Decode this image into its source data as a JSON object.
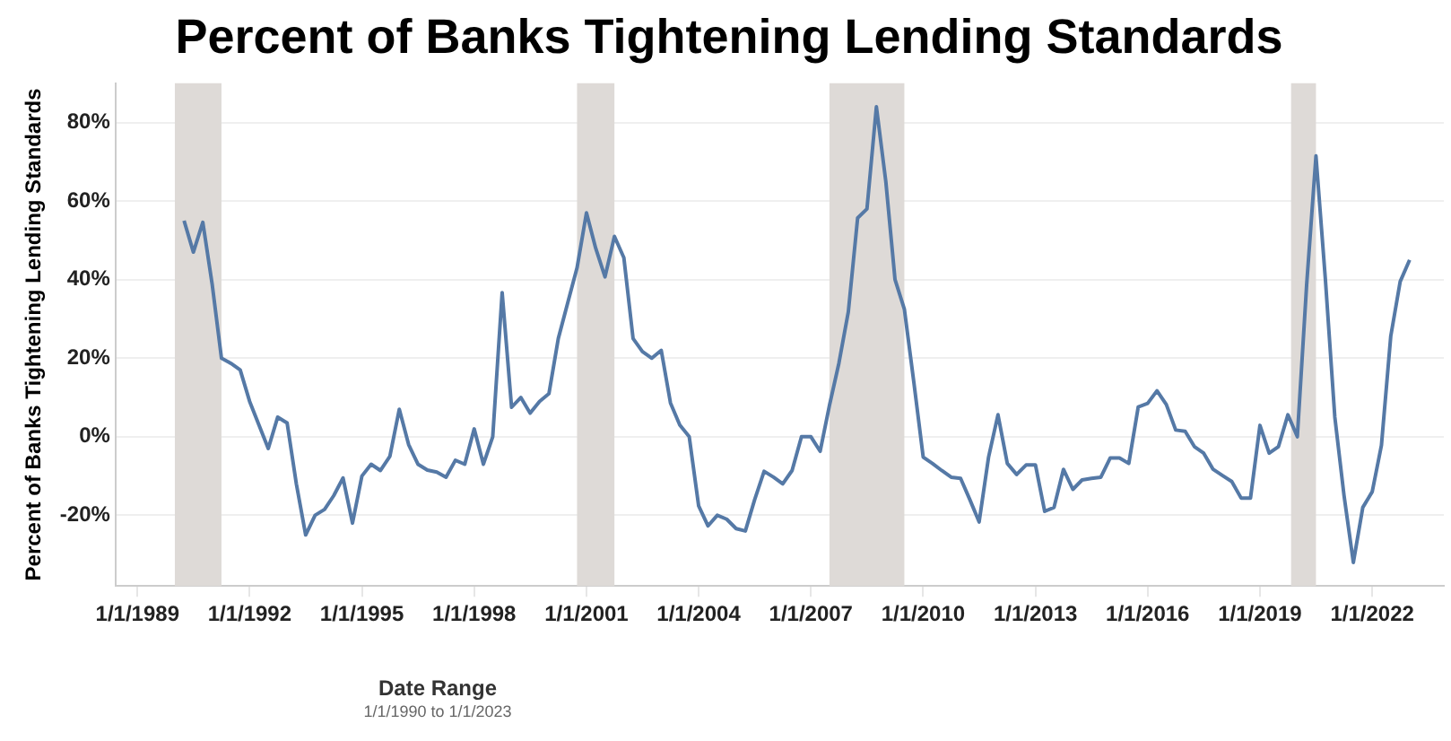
{
  "chart_data": {
    "type": "line",
    "title": "Percent of Banks Tightening Lending Standards",
    "ylabel": "Percent of Banks Tightening Lending Standards",
    "annotations": [
      "Date Range",
      "1/1/1990 to 1/1/2023"
    ],
    "x": [
      "1990-04",
      "1990-07",
      "1990-10",
      "1991-01",
      "1991-04",
      "1991-07",
      "1991-10",
      "1992-01",
      "1992-04",
      "1992-07",
      "1992-10",
      "1993-01",
      "1993-04",
      "1993-07",
      "1993-10",
      "1994-01",
      "1994-04",
      "1994-07",
      "1994-10",
      "1995-01",
      "1995-04",
      "1995-07",
      "1995-10",
      "1996-01",
      "1996-04",
      "1996-07",
      "1996-10",
      "1997-01",
      "1997-04",
      "1997-07",
      "1997-10",
      "1998-01",
      "1998-04",
      "1998-07",
      "1998-10",
      "1999-01",
      "1999-04",
      "1999-07",
      "1999-10",
      "2000-01",
      "2000-04",
      "2000-07",
      "2000-10",
      "2001-01",
      "2001-04",
      "2001-07",
      "2001-10",
      "2002-01",
      "2002-04",
      "2002-07",
      "2002-10",
      "2003-01",
      "2003-04",
      "2003-07",
      "2003-10",
      "2004-01",
      "2004-04",
      "2004-07",
      "2004-10",
      "2005-01",
      "2005-04",
      "2005-07",
      "2005-10",
      "2006-01",
      "2006-04",
      "2006-07",
      "2006-10",
      "2007-01",
      "2007-04",
      "2007-07",
      "2007-10",
      "2008-01",
      "2008-04",
      "2008-07",
      "2008-10",
      "2009-01",
      "2009-04",
      "2009-07",
      "2009-10",
      "2010-01",
      "2010-04",
      "2010-07",
      "2010-10",
      "2011-01",
      "2011-04",
      "2011-07",
      "2011-10",
      "2012-01",
      "2012-04",
      "2012-07",
      "2012-10",
      "2013-01",
      "2013-04",
      "2013-07",
      "2013-10",
      "2014-01",
      "2014-04",
      "2014-07",
      "2014-10",
      "2015-01",
      "2015-04",
      "2015-07",
      "2015-10",
      "2016-01",
      "2016-04",
      "2016-07",
      "2016-10",
      "2017-01",
      "2017-04",
      "2017-07",
      "2017-10",
      "2018-01",
      "2018-04",
      "2018-07",
      "2018-10",
      "2019-01",
      "2019-04",
      "2019-07",
      "2019-10",
      "2020-01",
      "2020-04",
      "2020-07",
      "2020-10",
      "2021-01",
      "2021-04",
      "2021-07",
      "2021-10",
      "2022-01",
      "2022-04",
      "2022-07",
      "2022-10",
      "2023-01"
    ],
    "series": [
      {
        "color": "#5579a6",
        "values": [
          55,
          47,
          54.6,
          38.7,
          20,
          18.7,
          17,
          9,
          3,
          -3,
          5,
          3.5,
          -12,
          -25,
          -20,
          -18.5,
          -15,
          -10.5,
          -22,
          -10,
          -7,
          -8.6,
          -5,
          7,
          -2,
          -7,
          -8.5,
          -9,
          -10.3,
          -6,
          -7,
          2,
          -7,
          0,
          36.7,
          7.5,
          10,
          6,
          9,
          11,
          25,
          34,
          43,
          57,
          48,
          40.7,
          51,
          45.6,
          25,
          21.7,
          20,
          22,
          8.6,
          3,
          0,
          -17.6,
          -22.7,
          -20,
          -21,
          -23.4,
          -24,
          -16,
          -8.8,
          -10.3,
          -12,
          -8.6,
          0,
          0,
          -3.7,
          8,
          18.7,
          31.8,
          55.7,
          58,
          84,
          65,
          40,
          32.5,
          14,
          -5.2,
          -6.8,
          -8.6,
          -10.3,
          -10.6,
          -16,
          -21.7,
          -5.2,
          5.6,
          -6.8,
          -9.6,
          -7.2,
          -7.2,
          -19,
          -18,
          -8.3,
          -13.4,
          -11,
          -10.6,
          -10.3,
          -5.4,
          -5.4,
          -6.8,
          7.6,
          8.5,
          11.7,
          8.2,
          1.7,
          1.4,
          -2.5,
          -4.2,
          -8.3,
          -9.9,
          -11.4,
          -15.6,
          -15.6,
          2.9,
          -4.2,
          -2.5,
          5.6,
          0,
          38.7,
          71.5,
          40,
          5,
          -15,
          -32,
          -18,
          -14,
          -2.2,
          25.6,
          39.5,
          45
        ]
      }
    ],
    "xlim": [
      "1988-06",
      "2023-12"
    ],
    "xticks": [
      {
        "value": "1989-01-01",
        "label": "1/1/1989"
      },
      {
        "value": "1992-01-01",
        "label": "1/1/1992"
      },
      {
        "value": "1995-01-01",
        "label": "1/1/1995"
      },
      {
        "value": "1998-01-01",
        "label": "1/1/1998"
      },
      {
        "value": "2001-01-01",
        "label": "1/1/2001"
      },
      {
        "value": "2004-01-01",
        "label": "1/1/2004"
      },
      {
        "value": "2007-01-01",
        "label": "1/1/2007"
      },
      {
        "value": "2010-01-01",
        "label": "1/1/2010"
      },
      {
        "value": "2013-01-01",
        "label": "1/1/2013"
      },
      {
        "value": "2016-01-01",
        "label": "1/1/2016"
      },
      {
        "value": "2019-01-01",
        "label": "1/1/2019"
      },
      {
        "value": "2022-01-01",
        "label": "1/1/2022"
      }
    ],
    "ylim": [
      -38,
      90
    ],
    "yticks": [
      {
        "value": -20,
        "label": "-20%"
      },
      {
        "value": 0,
        "label": "0%"
      },
      {
        "value": 20,
        "label": "20%"
      },
      {
        "value": 40,
        "label": "40%"
      },
      {
        "value": 60,
        "label": "60%"
      },
      {
        "value": 80,
        "label": "80%"
      }
    ],
    "bands": [
      {
        "axis": "x",
        "from": "1990-01",
        "to": "1991-04",
        "color": "#dedad7"
      },
      {
        "axis": "x",
        "from": "2000-10",
        "to": "2001-10",
        "color": "#dedad7"
      },
      {
        "axis": "x",
        "from": "2007-07",
        "to": "2009-07",
        "color": "#dedad7"
      },
      {
        "axis": "x",
        "from": "2019-11",
        "to": "2020-07",
        "color": "#dedad7"
      }
    ],
    "grid": "y",
    "legend": false,
    "marker": "none",
    "line_style": "solid"
  }
}
